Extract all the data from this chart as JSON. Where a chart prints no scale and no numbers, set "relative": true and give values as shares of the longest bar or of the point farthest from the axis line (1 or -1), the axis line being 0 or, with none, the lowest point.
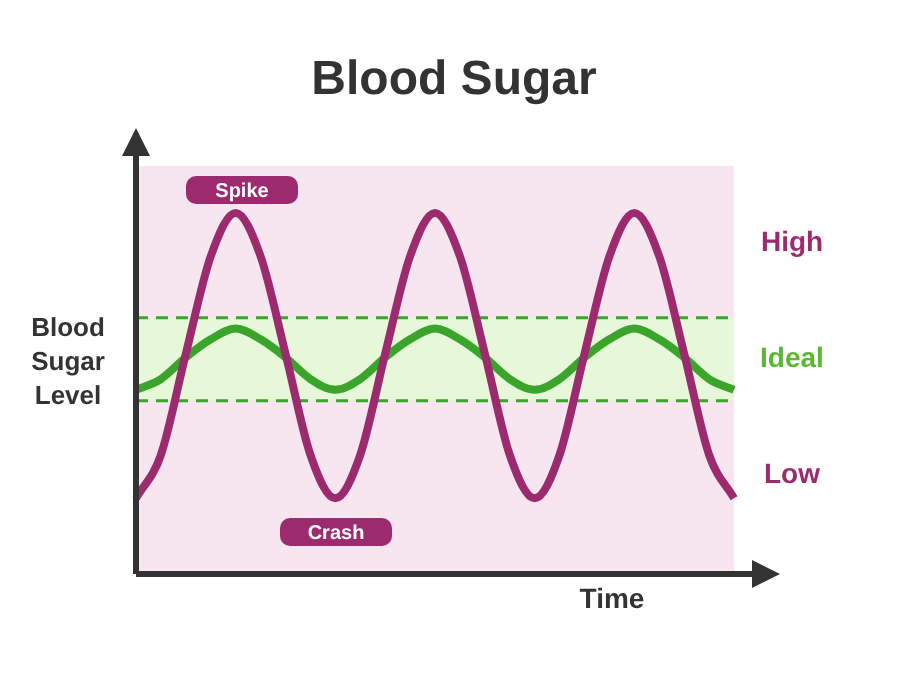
{
  "chart_data": {
    "type": "line",
    "title": "Blood Sugar",
    "xlabel": "Time",
    "ylabel": "Blood Sugar Level",
    "relative": true,
    "categories": [
      null,
      null,
      null,
      null,
      null,
      null,
      null,
      null,
      null,
      null,
      null,
      null,
      null,
      null,
      null,
      null,
      null,
      null,
      null,
      null,
      null,
      null,
      null,
      null,
      null
    ],
    "series": [
      {
        "color": "#9c2a6e",
        "values": [
          0.21,
          0.33,
          0.61,
          0.88,
          1,
          0.88,
          0.61,
          0.33,
          0.21,
          0.33,
          0.61,
          0.88,
          1,
          0.88,
          0.61,
          0.33,
          0.21,
          0.33,
          0.61,
          0.88,
          1,
          0.88,
          0.61,
          0.33,
          0.21
        ]
      },
      {
        "color": "#3aa52a",
        "values": [
          0.51,
          0.54,
          0.6,
          0.65,
          0.68,
          0.65,
          0.6,
          0.54,
          0.51,
          0.54,
          0.6,
          0.65,
          0.68,
          0.65,
          0.6,
          0.54,
          0.51,
          0.54,
          0.6,
          0.65,
          0.68,
          0.65,
          0.6,
          0.54,
          0.51
        ]
      }
    ],
    "bands": [
      {
        "axis": "y",
        "from": 0,
        "to": 1.13,
        "color": "#f7e5ef"
      },
      {
        "axis": "y",
        "from": 0.48,
        "to": 0.71,
        "label": "Ideal",
        "color": "#e6f7da"
      }
    ],
    "ref_lines": [
      {
        "axis": "y",
        "value": 0.71,
        "color": "#3aa52a",
        "line_style": "dashed"
      },
      {
        "axis": "y",
        "value": 0.48,
        "color": "#3aa52a",
        "line_style": "dashed"
      }
    ],
    "annotations": [
      "Spike",
      "Crash",
      "High",
      "Low"
    ],
    "legend": false,
    "marker": "none",
    "line_style": "solid"
  }
}
